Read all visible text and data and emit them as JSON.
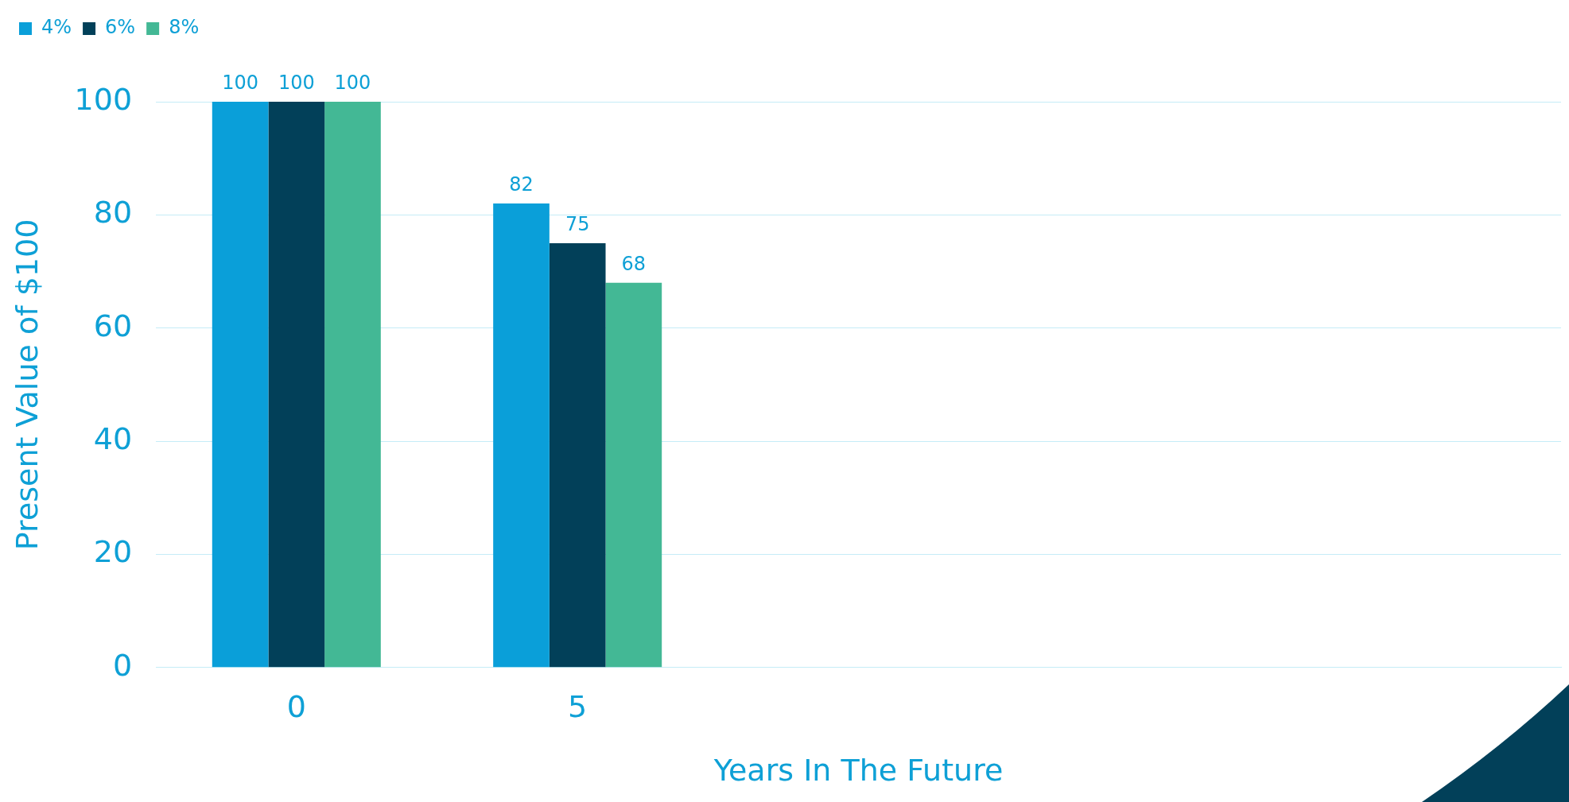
{
  "chart_data": {
    "type": "bar",
    "xlabel": "Years In The Future",
    "ylabel": "Present Value of $100",
    "categories": [
      "0",
      "5",
      null,
      null,
      null
    ],
    "series": [
      {
        "name": "4%",
        "color": "#0a9fd9",
        "values": [
          100,
          82,
          null,
          null,
          null
        ]
      },
      {
        "name": "6%",
        "color": "#024059",
        "values": [
          100,
          75,
          null,
          null,
          null
        ]
      },
      {
        "name": "8%",
        "color": "#43b895",
        "values": [
          100,
          68,
          null,
          null,
          null
        ]
      }
    ],
    "ylim": [
      0,
      100
    ],
    "yticks": [
      0,
      20,
      40,
      60,
      80,
      100
    ],
    "grid": "y",
    "legend": "top left",
    "data_labels": true
  }
}
